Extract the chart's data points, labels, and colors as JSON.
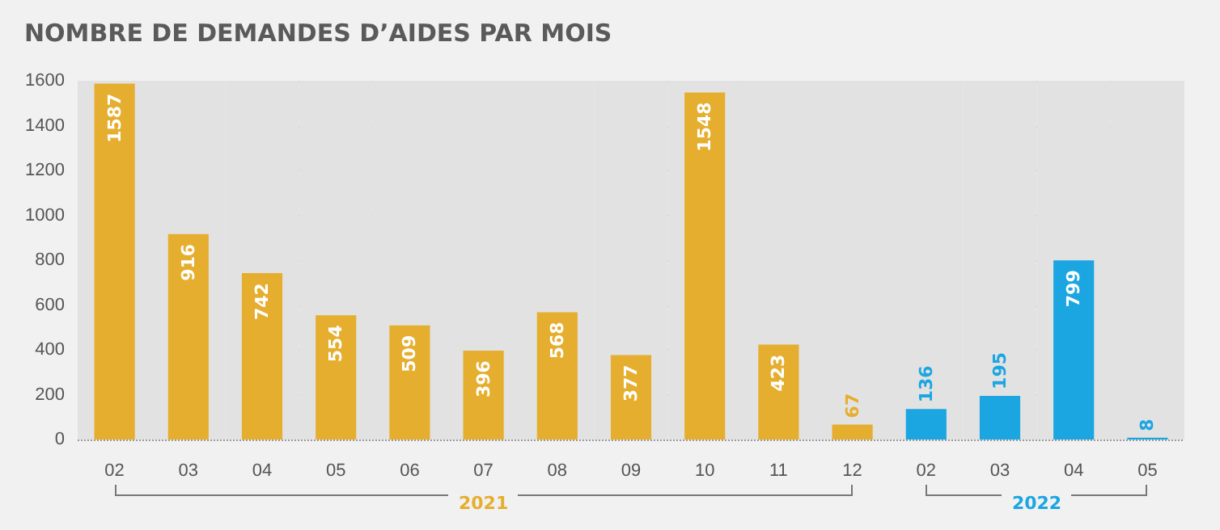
{
  "chart_data": {
    "type": "bar",
    "title": "NOMBRE DE DEMANDES D’AIDES PAR MOIS",
    "categories": [
      "02",
      "03",
      "04",
      "05",
      "06",
      "07",
      "08",
      "09",
      "10",
      "11",
      "12",
      "02",
      "03",
      "04",
      "05"
    ],
    "values": [
      1587,
      916,
      742,
      554,
      509,
      396,
      568,
      377,
      1548,
      423,
      67,
      136,
      195,
      799,
      8
    ],
    "colors": [
      "#e5ae2e",
      "#e5ae2e",
      "#e5ae2e",
      "#e5ae2e",
      "#e5ae2e",
      "#e5ae2e",
      "#e5ae2e",
      "#e5ae2e",
      "#e5ae2e",
      "#e5ae2e",
      "#e5ae2e",
      "#1ba6e2",
      "#1ba6e2",
      "#1ba6e2",
      "#1ba6e2"
    ],
    "ylim": [
      0,
      1600
    ],
    "yticks": [
      0,
      200,
      400,
      600,
      800,
      1000,
      1200,
      1400,
      1600
    ],
    "grid": "y",
    "data_labels": true,
    "annotations": [
      "2021",
      "2022"
    ]
  }
}
